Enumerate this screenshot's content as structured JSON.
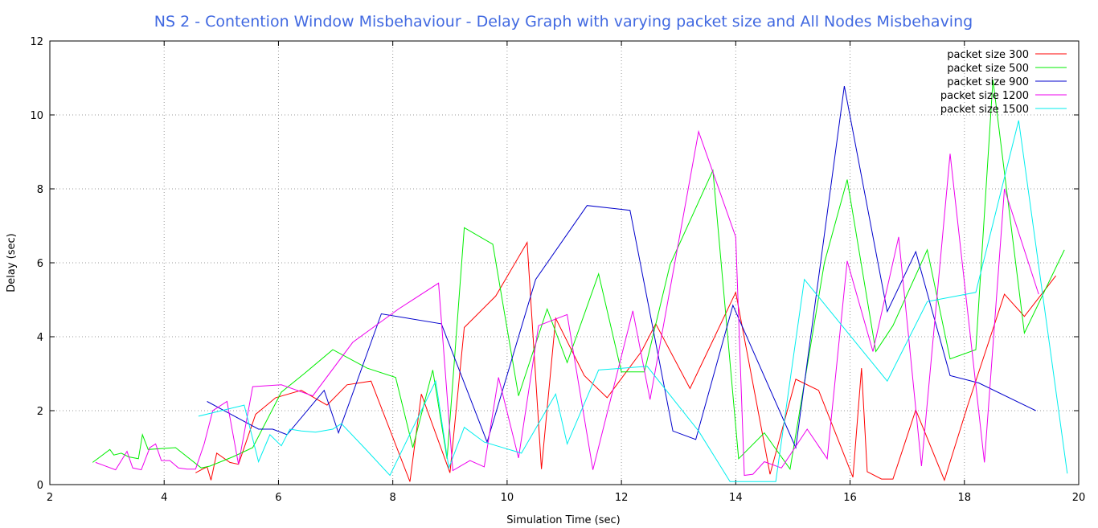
{
  "chart_data": {
    "type": "line",
    "title": "NS 2 - Contention Window Misbehaviour - Delay Graph with varying packet size and All Nodes Misbehaving",
    "xlabel": "Simulation Time (sec)",
    "ylabel": "Delay (sec)",
    "xlim": [
      2,
      20
    ],
    "ylim": [
      0,
      12
    ],
    "xticks": [
      2,
      4,
      6,
      8,
      10,
      12,
      14,
      16,
      18,
      20
    ],
    "yticks": [
      0,
      2,
      4,
      6,
      8,
      10,
      12
    ],
    "grid": true,
    "legend_position": "top-right",
    "title_color": "#4169e1",
    "series": [
      {
        "name": "packet size 300",
        "color": "#ff0000",
        "x": [
          4.55,
          4.75,
          4.82,
          4.92,
          5.15,
          5.3,
          5.6,
          5.95,
          6.4,
          6.85,
          7.2,
          7.62,
          8.3,
          8.5,
          9.0,
          9.25,
          9.8,
          10.35,
          10.6,
          10.85,
          11.35,
          11.75,
          12.35,
          12.6,
          13.2,
          13.6,
          14.0,
          14.6,
          15.05,
          15.45,
          16.05,
          16.2,
          16.3,
          16.55,
          16.75,
          17.15,
          17.65,
          18.05,
          18.7,
          19.05,
          19.6
        ],
        "y": [
          0.32,
          0.48,
          0.12,
          0.85,
          0.6,
          0.55,
          1.9,
          2.35,
          2.55,
          2.15,
          2.7,
          2.8,
          0.08,
          2.45,
          0.32,
          4.25,
          5.1,
          6.55,
          0.42,
          4.5,
          2.95,
          2.35,
          3.6,
          4.35,
          2.6,
          3.9,
          5.2,
          0.28,
          2.85,
          2.55,
          0.2,
          3.15,
          0.35,
          0.15,
          0.15,
          2.02,
          0.12,
          2.1,
          5.15,
          4.55,
          5.65
        ]
      },
      {
        "name": "packet size 500",
        "color": "#00ee00",
        "x": [
          2.75,
          3.05,
          3.12,
          3.25,
          3.38,
          3.55,
          3.62,
          3.72,
          4.2,
          4.65,
          4.8,
          5.2,
          5.55,
          6.05,
          6.45,
          6.95,
          7.55,
          8.05,
          8.35,
          8.7,
          8.95,
          9.25,
          9.75,
          10.2,
          10.7,
          11.05,
          11.6,
          12.0,
          12.4,
          12.85,
          13.6,
          14.05,
          14.5,
          14.95,
          15.55,
          15.95,
          16.45,
          16.75,
          17.35,
          17.75,
          18.2,
          18.5,
          19.05,
          19.75
        ],
        "y": [
          0.6,
          0.95,
          0.8,
          0.85,
          0.75,
          0.7,
          1.35,
          0.95,
          1.0,
          0.45,
          0.5,
          0.75,
          1.0,
          2.5,
          3.0,
          3.65,
          3.15,
          2.9,
          1.0,
          3.1,
          0.7,
          6.95,
          6.5,
          2.4,
          4.75,
          3.3,
          5.7,
          3.05,
          3.05,
          5.95,
          8.5,
          0.7,
          1.4,
          0.42,
          6.0,
          8.25,
          3.6,
          4.3,
          6.35,
          3.4,
          3.65,
          10.95,
          4.1,
          6.35
        ]
      },
      {
        "name": "packet size 900",
        "color": "#0000cc",
        "x": [
          4.75,
          5.65,
          5.9,
          6.15,
          6.8,
          7.05,
          7.8,
          8.85,
          9.65,
          10.5,
          11.4,
          12.15,
          12.9,
          13.3,
          13.95,
          15.05,
          15.9,
          16.65,
          17.15,
          17.75,
          18.25,
          19.25
        ],
        "y": [
          2.25,
          1.5,
          1.5,
          1.35,
          2.55,
          1.4,
          4.62,
          4.35,
          1.15,
          5.55,
          7.55,
          7.42,
          1.45,
          1.22,
          4.85,
          1.0,
          10.78,
          4.68,
          6.3,
          2.95,
          2.75,
          2.0
        ],
        "line_width": 1
      },
      {
        "name": "packet size 1200",
        "color": "#ee00ee",
        "x": [
          2.8,
          3.15,
          3.35,
          3.45,
          3.6,
          3.75,
          3.85,
          3.95,
          4.1,
          4.25,
          4.4,
          4.55,
          4.7,
          4.85,
          5.1,
          5.3,
          5.55,
          6.05,
          6.6,
          7.3,
          8.1,
          8.8,
          9.05,
          9.35,
          9.6,
          9.85,
          10.2,
          10.55,
          11.05,
          11.5,
          12.2,
          12.5,
          13.35,
          14.0,
          14.15,
          14.3,
          14.5,
          14.8,
          15.25,
          15.6,
          15.95,
          16.4,
          16.85,
          17.25,
          17.75,
          18.35,
          18.7,
          19.3
        ],
        "y": [
          0.6,
          0.4,
          0.9,
          0.45,
          0.4,
          1.0,
          1.1,
          0.65,
          0.65,
          0.45,
          0.42,
          0.42,
          1.1,
          2.0,
          2.25,
          0.55,
          2.65,
          2.7,
          2.4,
          3.85,
          4.75,
          5.45,
          0.38,
          0.65,
          0.48,
          2.9,
          0.72,
          4.3,
          4.6,
          0.4,
          4.7,
          2.3,
          9.55,
          6.7,
          0.25,
          0.28,
          0.62,
          0.45,
          1.5,
          0.7,
          6.05,
          3.6,
          6.7,
          0.5,
          8.95,
          0.6,
          8.0,
          5.15
        ]
      },
      {
        "name": "packet size 1500",
        "color": "#00eeee",
        "x": [
          4.6,
          5.4,
          5.65,
          5.85,
          6.05,
          6.2,
          6.4,
          6.65,
          6.95,
          7.1,
          7.5,
          7.95,
          8.75,
          8.98,
          9.25,
          9.6,
          10.25,
          10.85,
          11.05,
          11.6,
          12.45,
          13.35,
          13.9,
          14.7,
          15.2,
          16.65,
          17.35,
          18.2,
          18.95,
          19.8
        ],
        "y": [
          1.85,
          2.15,
          0.62,
          1.35,
          1.05,
          1.5,
          1.45,
          1.42,
          1.5,
          1.65,
          1.0,
          0.25,
          2.8,
          0.45,
          1.55,
          1.15,
          0.85,
          2.45,
          1.1,
          3.1,
          3.2,
          1.45,
          0.08,
          0.08,
          5.55,
          2.8,
          4.95,
          5.2,
          9.85,
          0.3
        ]
      }
    ]
  }
}
